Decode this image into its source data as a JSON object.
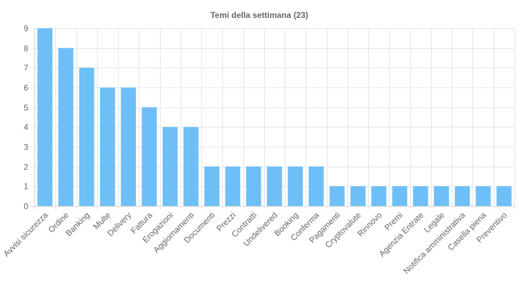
{
  "chart_data": {
    "type": "bar",
    "title": "Temi della settimana (23)",
    "xlabel": "",
    "ylabel": "",
    "ylim": [
      0,
      9
    ],
    "y_ticks": [
      "0",
      "1",
      "2",
      "3",
      "4",
      "5",
      "6",
      "7",
      "8",
      "9"
    ],
    "grid": true,
    "legend": "none",
    "bar_color": "#6ebff7",
    "categories": [
      "Avvisi sicurezza",
      "Ordine",
      "Banking",
      "Multe",
      "Delivery",
      "Fattura",
      "Erogazioni",
      "Aggiornamenti",
      "Documenti",
      "Prezzi",
      "Contratti",
      "Undelivered",
      "Booking",
      "Conferma",
      "Pagamenti",
      "Cryptovalute",
      "Rinnovo",
      "Premi",
      "Agenzia Entrate",
      "Legale",
      "Notifica amministrativa",
      "Casella piena",
      "Preventivo"
    ],
    "values": [
      9,
      8,
      7,
      6,
      6,
      5,
      4,
      4,
      2,
      2,
      2,
      2,
      2,
      2,
      1,
      1,
      1,
      1,
      1,
      1,
      1,
      1,
      1
    ]
  }
}
